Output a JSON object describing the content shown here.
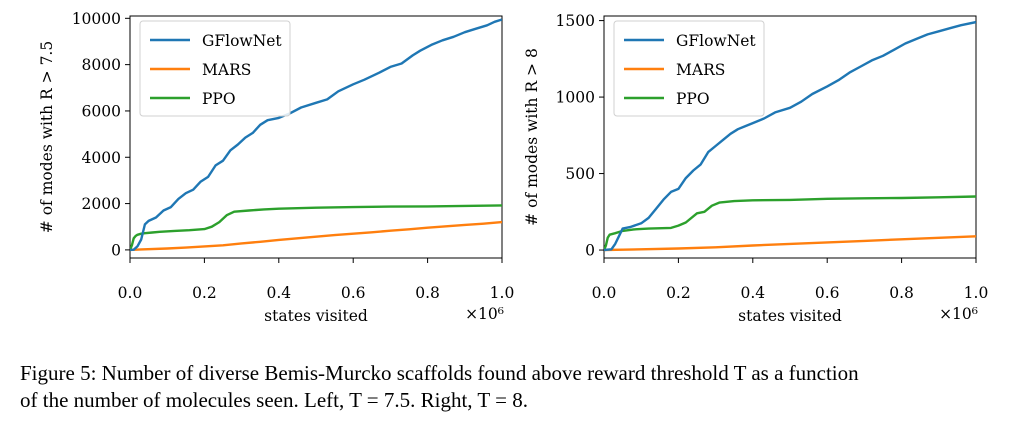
{
  "chart_data": [
    {
      "type": "line",
      "title": "",
      "xlabel": "states visited",
      "ylabel": "# of modes with R > 7.5",
      "xlim": [
        0,
        1.0
      ],
      "ylim": [
        -350,
        10100
      ],
      "x_ticks": [
        0.0,
        0.2,
        0.4,
        0.6,
        0.8,
        1.0
      ],
      "x_tick_labels": [
        "0.0",
        "0.2",
        "0.4",
        "0.6",
        "0.8",
        "1.0"
      ],
      "y_ticks": [
        0,
        2000,
        4000,
        6000,
        8000,
        10000
      ],
      "y_tick_labels": [
        "0",
        "2000",
        "4000",
        "6000",
        "8000",
        "10000"
      ],
      "x_offset_label": "×10⁶",
      "legend_position": "top-left",
      "series": [
        {
          "name": "GFlowNet",
          "color": "#1f77b4",
          "points": [
            [
              0,
              0
            ],
            [
              0.01,
              10
            ],
            [
              0.02,
              150
            ],
            [
              0.03,
              450
            ],
            [
              0.04,
              1100
            ],
            [
              0.05,
              1250
            ],
            [
              0.07,
              1400
            ],
            [
              0.09,
              1700
            ],
            [
              0.11,
              1850
            ],
            [
              0.13,
              2200
            ],
            [
              0.15,
              2450
            ],
            [
              0.17,
              2600
            ],
            [
              0.19,
              2950
            ],
            [
              0.21,
              3150
            ],
            [
              0.23,
              3650
            ],
            [
              0.25,
              3850
            ],
            [
              0.27,
              4300
            ],
            [
              0.29,
              4550
            ],
            [
              0.31,
              4850
            ],
            [
              0.33,
              5050
            ],
            [
              0.35,
              5400
            ],
            [
              0.37,
              5600
            ],
            [
              0.4,
              5700
            ],
            [
              0.43,
              5900
            ],
            [
              0.46,
              6150
            ],
            [
              0.5,
              6350
            ],
            [
              0.53,
              6500
            ],
            [
              0.56,
              6850
            ],
            [
              0.6,
              7150
            ],
            [
              0.63,
              7350
            ],
            [
              0.67,
              7650
            ],
            [
              0.7,
              7900
            ],
            [
              0.73,
              8050
            ],
            [
              0.76,
              8400
            ],
            [
              0.78,
              8600
            ],
            [
              0.81,
              8850
            ],
            [
              0.84,
              9050
            ],
            [
              0.87,
              9200
            ],
            [
              0.9,
              9400
            ],
            [
              0.93,
              9550
            ],
            [
              0.96,
              9700
            ],
            [
              0.98,
              9850
            ],
            [
              1.0,
              9950
            ]
          ]
        },
        {
          "name": "MARS",
          "color": "#ff7f0e",
          "points": [
            [
              0,
              0
            ],
            [
              0.03,
              20
            ],
            [
              0.1,
              60
            ],
            [
              0.15,
              100
            ],
            [
              0.2,
              150
            ],
            [
              0.25,
              200
            ],
            [
              0.3,
              280
            ],
            [
              0.35,
              350
            ],
            [
              0.4,
              430
            ],
            [
              0.45,
              500
            ],
            [
              0.5,
              570
            ],
            [
              0.55,
              640
            ],
            [
              0.6,
              700
            ],
            [
              0.65,
              760
            ],
            [
              0.7,
              830
            ],
            [
              0.75,
              890
            ],
            [
              0.8,
              960
            ],
            [
              0.85,
              1020
            ],
            [
              0.9,
              1080
            ],
            [
              0.95,
              1130
            ],
            [
              1.0,
              1200
            ]
          ]
        },
        {
          "name": "PPO",
          "color": "#2ca02c",
          "points": [
            [
              0,
              0
            ],
            [
              0.005,
              200
            ],
            [
              0.01,
              500
            ],
            [
              0.015,
              600
            ],
            [
              0.02,
              650
            ],
            [
              0.03,
              700
            ],
            [
              0.04,
              720
            ],
            [
              0.06,
              750
            ],
            [
              0.08,
              780
            ],
            [
              0.12,
              820
            ],
            [
              0.16,
              850
            ],
            [
              0.2,
              900
            ],
            [
              0.22,
              1000
            ],
            [
              0.24,
              1200
            ],
            [
              0.26,
              1500
            ],
            [
              0.28,
              1650
            ],
            [
              0.32,
              1700
            ],
            [
              0.36,
              1750
            ],
            [
              0.4,
              1780
            ],
            [
              0.5,
              1820
            ],
            [
              0.6,
              1850
            ],
            [
              0.7,
              1870
            ],
            [
              0.8,
              1880
            ],
            [
              0.9,
              1900
            ],
            [
              1.0,
              1920
            ]
          ]
        }
      ]
    },
    {
      "type": "line",
      "title": "",
      "xlabel": "states visited",
      "ylabel": "# of modes with R > 8",
      "xlim": [
        0,
        1.0
      ],
      "ylim": [
        -52,
        1530
      ],
      "x_ticks": [
        0.0,
        0.2,
        0.4,
        0.6,
        0.8,
        1.0
      ],
      "x_tick_labels": [
        "0.0",
        "0.2",
        "0.4",
        "0.6",
        "0.8",
        "1.0"
      ],
      "y_ticks": [
        0,
        500,
        1000,
        1500
      ],
      "y_tick_labels": [
        "0",
        "500",
        "1000",
        "1500"
      ],
      "x_offset_label": "×10⁶",
      "legend_position": "top-left",
      "series": [
        {
          "name": "GFlowNet",
          "color": "#1f77b4",
          "points": [
            [
              0,
              0
            ],
            [
              0.02,
              5
            ],
            [
              0.03,
              40
            ],
            [
              0.04,
              90
            ],
            [
              0.05,
              140
            ],
            [
              0.07,
              150
            ],
            [
              0.1,
              175
            ],
            [
              0.12,
              210
            ],
            [
              0.14,
              270
            ],
            [
              0.16,
              330
            ],
            [
              0.18,
              380
            ],
            [
              0.2,
              400
            ],
            [
              0.22,
              470
            ],
            [
              0.24,
              520
            ],
            [
              0.26,
              560
            ],
            [
              0.28,
              640
            ],
            [
              0.3,
              680
            ],
            [
              0.32,
              720
            ],
            [
              0.34,
              760
            ],
            [
              0.36,
              790
            ],
            [
              0.38,
              810
            ],
            [
              0.4,
              830
            ],
            [
              0.43,
              860
            ],
            [
              0.46,
              900
            ],
            [
              0.5,
              930
            ],
            [
              0.53,
              970
            ],
            [
              0.56,
              1020
            ],
            [
              0.6,
              1070
            ],
            [
              0.63,
              1110
            ],
            [
              0.66,
              1160
            ],
            [
              0.69,
              1200
            ],
            [
              0.72,
              1240
            ],
            [
              0.75,
              1270
            ],
            [
              0.78,
              1310
            ],
            [
              0.81,
              1350
            ],
            [
              0.84,
              1380
            ],
            [
              0.87,
              1410
            ],
            [
              0.9,
              1430
            ],
            [
              0.93,
              1450
            ],
            [
              0.96,
              1470
            ],
            [
              1.0,
              1490
            ]
          ]
        },
        {
          "name": "MARS",
          "color": "#ff7f0e",
          "points": [
            [
              0,
              0
            ],
            [
              0.05,
              2
            ],
            [
              0.1,
              5
            ],
            [
              0.2,
              10
            ],
            [
              0.3,
              18
            ],
            [
              0.4,
              30
            ],
            [
              0.5,
              40
            ],
            [
              0.6,
              50
            ],
            [
              0.7,
              60
            ],
            [
              0.8,
              70
            ],
            [
              0.9,
              80
            ],
            [
              1.0,
              90
            ]
          ]
        },
        {
          "name": "PPO",
          "color": "#2ca02c",
          "points": [
            [
              0,
              0
            ],
            [
              0.005,
              30
            ],
            [
              0.01,
              80
            ],
            [
              0.015,
              100
            ],
            [
              0.03,
              110
            ],
            [
              0.05,
              125
            ],
            [
              0.08,
              135
            ],
            [
              0.12,
              140
            ],
            [
              0.18,
              145
            ],
            [
              0.2,
              160
            ],
            [
              0.22,
              180
            ],
            [
              0.25,
              240
            ],
            [
              0.27,
              250
            ],
            [
              0.29,
              290
            ],
            [
              0.31,
              310
            ],
            [
              0.35,
              320
            ],
            [
              0.4,
              325
            ],
            [
              0.5,
              328
            ],
            [
              0.6,
              335
            ],
            [
              0.7,
              338
            ],
            [
              0.8,
              340
            ],
            [
              0.9,
              345
            ],
            [
              1.0,
              350
            ]
          ]
        }
      ]
    }
  ],
  "caption": {
    "line1": "Figure 5: Number of diverse Bemis-Murcko scaffolds found above reward threshold T as a function",
    "line2": "of the number of molecules seen. Left, T = 7.5. Right, T = 8."
  }
}
